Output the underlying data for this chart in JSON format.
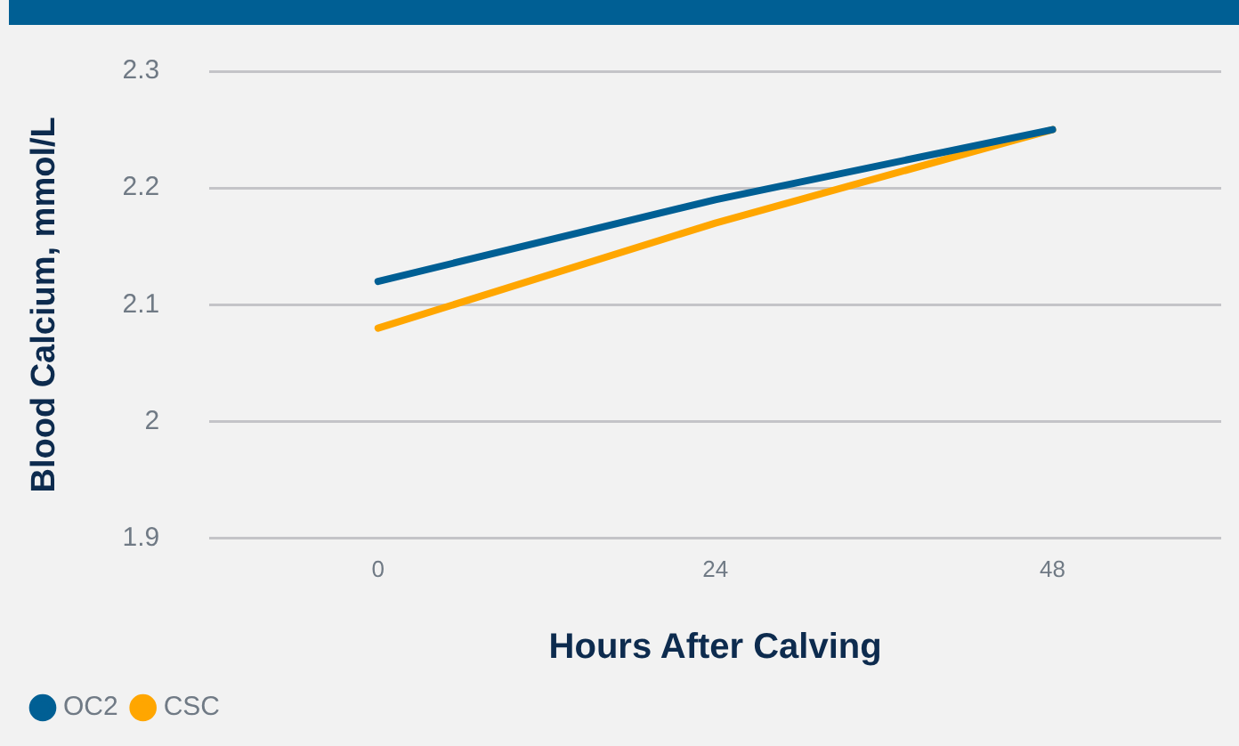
{
  "chart_data": {
    "type": "line",
    "xlabel": "Hours After Calving",
    "ylabel": "Blood Calcium, mmol/L",
    "categories": [
      "0",
      "24",
      "48"
    ],
    "series": [
      {
        "name": "OC2",
        "color": "#005f94",
        "values": [
          2.12,
          2.19,
          2.25
        ]
      },
      {
        "name": "CSC",
        "color": "#ffa600",
        "values": [
          2.08,
          2.17,
          2.25
        ]
      }
    ],
    "ylim": [
      1.9,
      2.3
    ],
    "yticks": [
      1.9,
      2,
      2.1,
      2.2,
      2.3
    ],
    "grid": "y",
    "legend": "bottom left",
    "marker": "none",
    "line_style": "solid"
  }
}
